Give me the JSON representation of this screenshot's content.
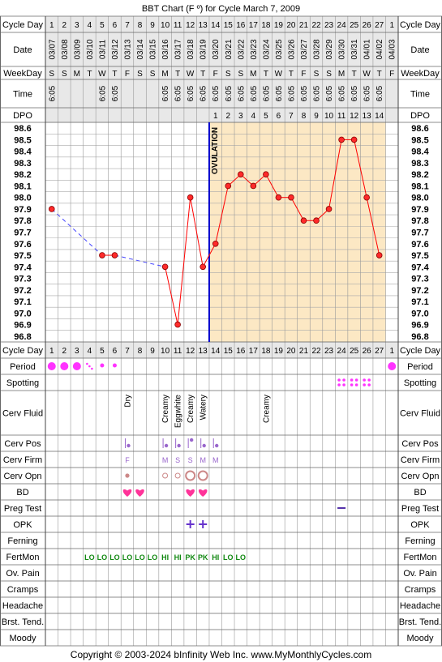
{
  "chart_data": {
    "type": "line",
    "title": "BBT Chart (F º) for Cycle March 7, 2009",
    "row_labels": {
      "cycle_day": "Cycle Day",
      "date": "Date",
      "weekday": "WeekDay",
      "time": "Time",
      "dpo": "DPO",
      "period": "Period",
      "spotting": "Spotting",
      "cerv_fluid": "Cerv Fluid",
      "cerv_pos": "Cerv Pos",
      "cerv_firm": "Cerv Firm",
      "cerv_opn": "Cerv Opn",
      "bd": "BD",
      "preg_test": "Preg Test",
      "opk": "OPK",
      "ferning": "Ferning",
      "fertmon": "FertMon",
      "ov_pain": "Ov. Pain",
      "cramps": "Cramps",
      "headache": "Headache",
      "brst_tend": "Brst. Tend.",
      "moody": "Moody"
    },
    "cycle_days": [
      "1",
      "2",
      "3",
      "4",
      "5",
      "6",
      "7",
      "8",
      "9",
      "10",
      "11",
      "12",
      "13",
      "14",
      "15",
      "16",
      "17",
      "18",
      "19",
      "20",
      "21",
      "22",
      "23",
      "24",
      "25",
      "26",
      "27",
      "1"
    ],
    "dates": [
      "03/07",
      "03/08",
      "03/09",
      "03/10",
      "03/11",
      "03/12",
      "03/13",
      "03/14",
      "03/15",
      "03/16",
      "03/17",
      "03/18",
      "03/19",
      "03/20",
      "03/21",
      "03/22",
      "03/23",
      "03/24",
      "03/25",
      "03/26",
      "03/27",
      "03/28",
      "03/29",
      "03/30",
      "03/31",
      "04/01",
      "04/02",
      "04/03"
    ],
    "weekdays": [
      "S",
      "S",
      "M",
      "T",
      "W",
      "T",
      "F",
      "S",
      "S",
      "M",
      "T",
      "W",
      "T",
      "F",
      "S",
      "S",
      "M",
      "T",
      "W",
      "T",
      "F",
      "S",
      "S",
      "M",
      "T",
      "W",
      "T",
      "F"
    ],
    "times": [
      "6:05",
      "",
      "",
      "",
      "6:05",
      "6:05",
      "",
      "",
      "",
      "6:05",
      "6:05",
      "6:05",
      "6:05",
      "6:05",
      "6:05",
      "6:05",
      "6:05",
      "6:05",
      "6:05",
      "6:05",
      "6:05",
      "6:05",
      "6:05",
      "6:05",
      "6:05",
      "6:05",
      "6:05",
      ""
    ],
    "dpo": [
      "",
      "",
      "",
      "",
      "",
      "",
      "",
      "",
      "",
      "",
      "",
      "",
      "",
      "1",
      "2",
      "3",
      "4",
      "5",
      "6",
      "7",
      "8",
      "9",
      "10",
      "11",
      "12",
      "13",
      "14",
      ""
    ],
    "y_ticks": [
      "98.6",
      "98.5",
      "98.4",
      "98.3",
      "98.2",
      "98.1",
      "98.0",
      "97.9",
      "97.8",
      "97.7",
      "97.6",
      "97.5",
      "97.4",
      "97.3",
      "97.2",
      "97.1",
      "97.0",
      "96.9",
      "96.8"
    ],
    "ylim": [
      96.8,
      98.6
    ],
    "temps": [
      97.9,
      null,
      null,
      null,
      97.5,
      97.5,
      null,
      null,
      null,
      97.4,
      96.9,
      98.0,
      97.4,
      97.6,
      98.1,
      98.2,
      98.1,
      98.2,
      98.0,
      98.0,
      97.8,
      97.8,
      97.9,
      98.5,
      98.5,
      98.0,
      97.5,
      null
    ],
    "ovulation_label": "OVULATION",
    "ovulation_after_day_index": 12,
    "colors": {
      "line": "#ff0000",
      "dashed": "#4444ff",
      "ovulation": "#0000cc",
      "post_ov_bg": "#fce8c4",
      "header_bg": "#e8e8e8",
      "grid": "#aaaaaa",
      "period": "#ff33ff"
    },
    "period": [
      "big",
      "big",
      "big",
      "spotty",
      "small",
      "small",
      "",
      "",
      "",
      "",
      "",
      "",
      "",
      "",
      "",
      "",
      "",
      "",
      "",
      "",
      "",
      "",
      "",
      "",
      "",
      "",
      "",
      "big"
    ],
    "spotting": [
      "",
      "",
      "",
      "",
      "",
      "",
      "",
      "",
      "",
      "",
      "",
      "",
      "",
      "",
      "",
      "",
      "",
      "",
      "",
      "",
      "",
      "",
      "",
      "",
      "",
      "",
      "",
      ""
    ],
    "spotting_marks": [
      23,
      24,
      25
    ],
    "cerv_fluid": [
      "",
      "",
      "",
      "",
      "",
      "",
      "Dry",
      "",
      "",
      "Creamy",
      "Eggwhite",
      "Creamy",
      "Watery",
      "",
      "",
      "",
      "",
      "Creamy",
      "",
      "",
      "",
      "",
      "",
      "",
      "",
      "",
      "",
      ""
    ],
    "cerv_pos": [
      "",
      "",
      "",
      "",
      "",
      "",
      "low",
      "",
      "",
      "low",
      "low",
      "high",
      "low",
      "low",
      "",
      "",
      "",
      "",
      "",
      "",
      "",
      "",
      "",
      "",
      "",
      "",
      "",
      ""
    ],
    "cerv_firm": [
      "",
      "",
      "",
      "",
      "",
      "",
      "F",
      "",
      "",
      "M",
      "S",
      "S",
      "M",
      "M",
      "",
      "",
      "",
      "",
      "",
      "",
      "",
      "",
      "",
      "",
      "",
      "",
      "",
      ""
    ],
    "cerv_opn": [
      "",
      "",
      "",
      "",
      "",
      "",
      "dot",
      "",
      "",
      "small",
      "small",
      "large",
      "large",
      "",
      "",
      "",
      "",
      "",
      "",
      "",
      "",
      "",
      "",
      "",
      "",
      "",
      "",
      ""
    ],
    "bd": [
      "",
      "",
      "",
      "",
      "",
      "",
      "heart",
      "heart",
      "",
      "",
      "",
      "heart",
      "heart",
      "",
      "",
      "",
      "",
      "",
      "",
      "",
      "",
      "",
      "",
      "",
      "",
      "",
      "",
      ""
    ],
    "preg_test": [
      "",
      "",
      "",
      "",
      "",
      "",
      "",
      "",
      "",
      "",
      "",
      "",
      "",
      "",
      "",
      "",
      "",
      "",
      "",
      "",
      "",
      "",
      "",
      "neg",
      "",
      "",
      "",
      ""
    ],
    "opk": [
      "",
      "",
      "",
      "",
      "",
      "",
      "",
      "",
      "",
      "",
      "",
      "pos",
      "pos",
      "",
      "",
      "",
      "",
      "",
      "",
      "",
      "",
      "",
      "",
      "",
      "",
      "",
      "",
      ""
    ],
    "fertmon": [
      "",
      "",
      "",
      "LO",
      "LO",
      "LO",
      "LO",
      "LO",
      "LO",
      "HI",
      "HI",
      "PK",
      "PK",
      "HI",
      "LO",
      "LO",
      "",
      "",
      "",
      "",
      "",
      "",
      "",
      "",
      "",
      "",
      "",
      ""
    ],
    "footer": "Copyright © 2003-2024 bInfinity Web Inc.    www.MyMonthlyCycles.com"
  }
}
